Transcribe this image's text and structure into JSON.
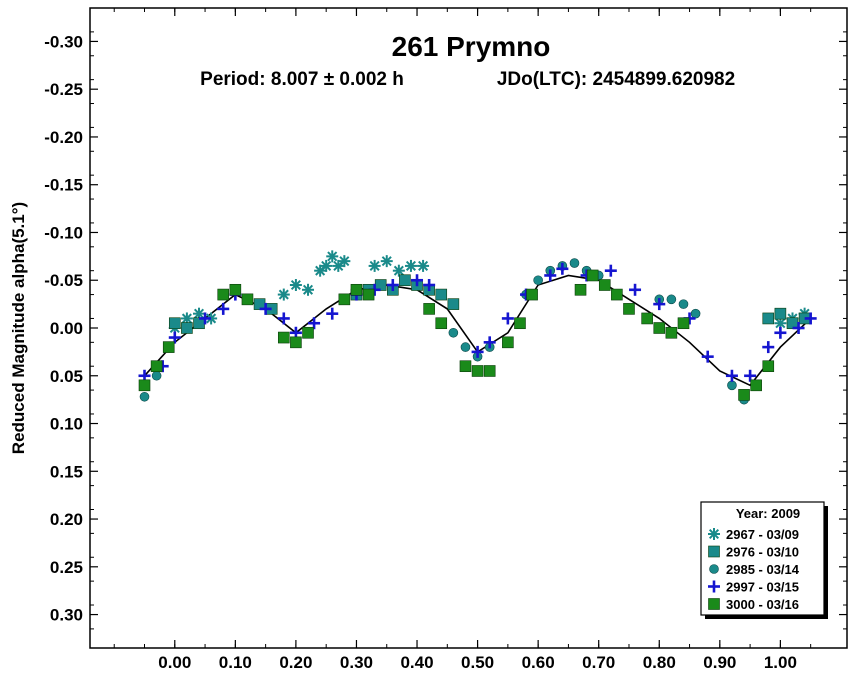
{
  "chart_data": {
    "type": "scatter",
    "title": "261 Prymno",
    "subtitle_period": "Period: 8.007 ± 0.002 h",
    "subtitle_epoch": "JDo(LTC): 2454899.620982",
    "xlabel": "",
    "ylabel": "Reduced Magnitude alpha(5.1°)",
    "xlim": [
      -0.14,
      1.11
    ],
    "ylim": [
      -0.335,
      0.335
    ],
    "y_inverted": true,
    "x_ticks": [
      0.0,
      0.1,
      0.2,
      0.3,
      0.4,
      0.5,
      0.6,
      0.7,
      0.8,
      0.9,
      1.0
    ],
    "x_tick_labels": [
      "0.00",
      "0.10",
      "0.20",
      "0.30",
      "0.40",
      "0.50",
      "0.60",
      "0.70",
      "0.80",
      "0.90",
      "1.00"
    ],
    "y_ticks": [
      -0.3,
      -0.25,
      -0.2,
      -0.15,
      -0.1,
      -0.05,
      0.0,
      0.05,
      0.1,
      0.15,
      0.2,
      0.25,
      0.3
    ],
    "y_tick_labels": [
      "-0.30",
      "-0.25",
      "-0.20",
      "-0.15",
      "-0.10",
      "-0.05",
      "0.00",
      "0.05",
      "0.10",
      "0.15",
      "0.20",
      "0.25",
      "0.30"
    ],
    "legend": {
      "title": "Year: 2009",
      "position": "bottom-right"
    },
    "fit_curve": {
      "x": [
        -0.05,
        0.0,
        0.05,
        0.1,
        0.15,
        0.2,
        0.25,
        0.3,
        0.35,
        0.4,
        0.45,
        0.5,
        0.55,
        0.6,
        0.65,
        0.7,
        0.75,
        0.8,
        0.85,
        0.9,
        0.95,
        1.0,
        1.05
      ],
      "y": [
        0.05,
        0.015,
        -0.01,
        -0.035,
        -0.02,
        0.005,
        -0.02,
        -0.04,
        -0.045,
        -0.04,
        -0.02,
        0.025,
        0.005,
        -0.045,
        -0.055,
        -0.05,
        -0.03,
        -0.01,
        0.015,
        0.045,
        0.06,
        0.02,
        -0.01
      ]
    },
    "series": [
      {
        "name": "2967 - 03/09",
        "marker": "asterisk",
        "color": "#1a8a8a",
        "x": [
          0.0,
          0.02,
          0.04,
          0.06,
          0.18,
          0.2,
          0.22,
          0.24,
          0.25,
          0.26,
          0.27,
          0.28,
          0.33,
          0.35,
          0.37,
          0.39,
          0.41,
          1.0,
          1.02,
          1.04
        ],
        "y": [
          0.0,
          -0.01,
          -0.015,
          -0.01,
          -0.035,
          -0.045,
          -0.04,
          -0.06,
          -0.065,
          -0.075,
          -0.065,
          -0.07,
          -0.065,
          -0.07,
          -0.06,
          -0.065,
          -0.065,
          -0.005,
          -0.01,
          -0.015
        ]
      },
      {
        "name": "2976 - 03/10",
        "marker": "square",
        "color": "#1a8a8a",
        "x": [
          0.0,
          0.02,
          0.04,
          0.14,
          0.16,
          0.3,
          0.32,
          0.34,
          0.36,
          0.38,
          0.4,
          0.42,
          0.44,
          0.46,
          0.98,
          1.0,
          1.02,
          1.04
        ],
        "y": [
          -0.005,
          0.0,
          -0.005,
          -0.025,
          -0.02,
          -0.035,
          -0.04,
          -0.045,
          -0.04,
          -0.05,
          -0.045,
          -0.04,
          -0.035,
          -0.025,
          -0.01,
          -0.015,
          -0.005,
          -0.01
        ]
      },
      {
        "name": "2985 - 03/14",
        "marker": "circle",
        "color": "#1a8a8a",
        "x": [
          -0.05,
          -0.03,
          0.44,
          0.46,
          0.48,
          0.5,
          0.52,
          0.58,
          0.6,
          0.62,
          0.64,
          0.66,
          0.68,
          0.7,
          0.8,
          0.82,
          0.84,
          0.86,
          0.92,
          0.94,
          0.96
        ],
        "y": [
          0.072,
          0.05,
          -0.005,
          0.005,
          0.02,
          0.03,
          0.02,
          -0.035,
          -0.05,
          -0.06,
          -0.065,
          -0.068,
          -0.06,
          -0.055,
          -0.03,
          -0.03,
          -0.025,
          -0.015,
          0.06,
          0.075,
          0.06
        ]
      },
      {
        "name": "2997 - 03/15",
        "marker": "plus",
        "color": "#1515d0",
        "x": [
          -0.05,
          -0.02,
          0.0,
          0.05,
          0.08,
          0.1,
          0.15,
          0.18,
          0.2,
          0.23,
          0.26,
          0.3,
          0.33,
          0.36,
          0.4,
          0.42,
          0.5,
          0.52,
          0.55,
          0.58,
          0.62,
          0.64,
          0.68,
          0.72,
          0.76,
          0.8,
          0.85,
          0.88,
          0.92,
          0.95,
          0.98,
          1.0,
          1.03,
          1.05
        ],
        "y": [
          0.05,
          0.04,
          0.01,
          -0.01,
          -0.02,
          -0.035,
          -0.02,
          -0.01,
          0.005,
          -0.005,
          -0.015,
          -0.035,
          -0.04,
          -0.045,
          -0.05,
          -0.045,
          0.025,
          0.015,
          -0.01,
          -0.035,
          -0.055,
          -0.062,
          -0.055,
          -0.06,
          -0.04,
          -0.025,
          -0.01,
          0.03,
          0.05,
          0.05,
          0.02,
          0.005,
          0.0,
          -0.01
        ]
      },
      {
        "name": "3000 - 03/16",
        "marker": "square",
        "color": "#1a8a1a",
        "x": [
          -0.05,
          -0.03,
          -0.01,
          0.08,
          0.1,
          0.12,
          0.18,
          0.2,
          0.22,
          0.28,
          0.3,
          0.32,
          0.42,
          0.44,
          0.48,
          0.5,
          0.52,
          0.55,
          0.57,
          0.59,
          0.67,
          0.69,
          0.71,
          0.73,
          0.75,
          0.78,
          0.8,
          0.82,
          0.84,
          0.94,
          0.96,
          0.98
        ],
        "y": [
          0.06,
          0.04,
          0.02,
          -0.035,
          -0.04,
          -0.03,
          0.01,
          0.015,
          0.005,
          -0.03,
          -0.04,
          -0.035,
          -0.02,
          -0.005,
          0.04,
          0.045,
          0.045,
          0.015,
          -0.005,
          -0.035,
          -0.04,
          -0.055,
          -0.045,
          -0.035,
          -0.02,
          -0.01,
          0.0,
          0.005,
          -0.005,
          0.07,
          0.06,
          0.04
        ]
      }
    ]
  }
}
